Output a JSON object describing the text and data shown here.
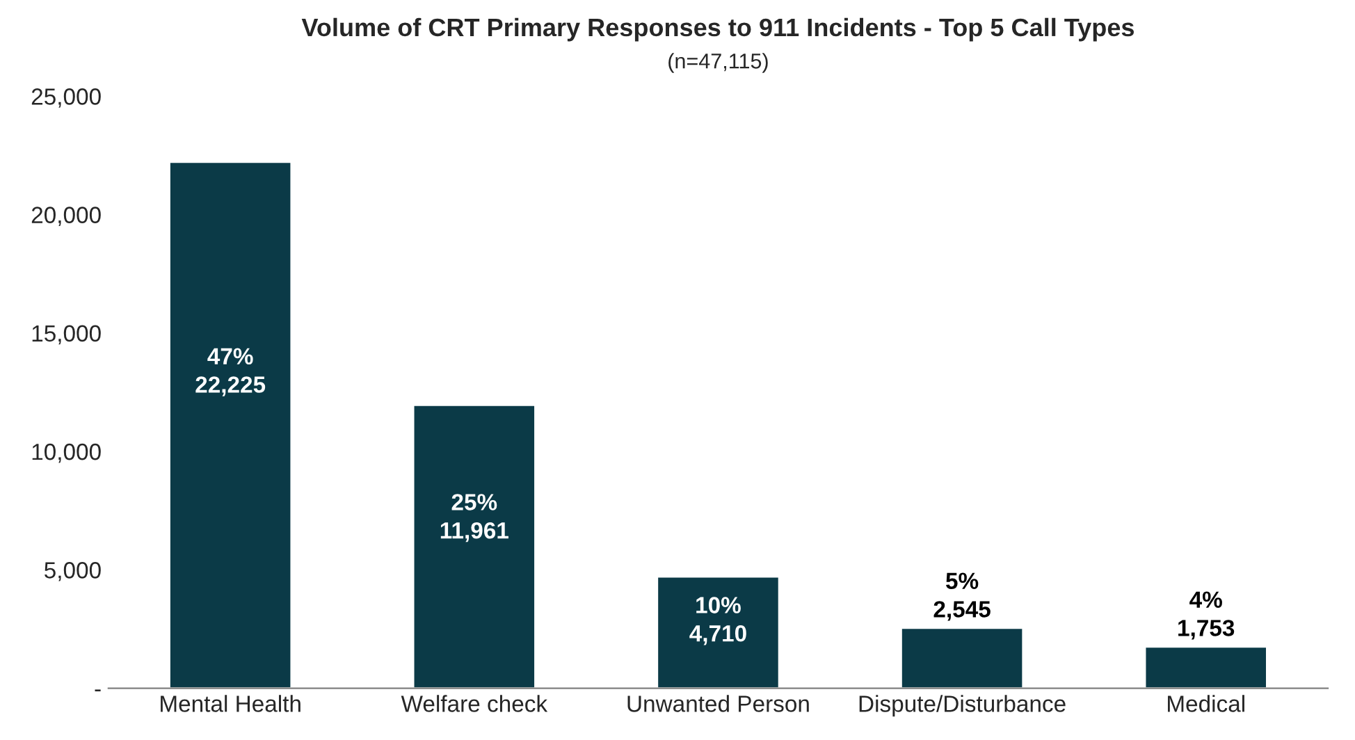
{
  "chart_data": {
    "type": "bar",
    "title": "Volume of CRT Primary Responses to 911 Incidents - Top 5 Call Types",
    "subtitle": "(n=47,115)",
    "categories": [
      "Mental Health",
      "Welfare check",
      "Unwanted Person",
      "Dispute/Disturbance",
      "Medical"
    ],
    "values": [
      22225,
      11961,
      4710,
      2545,
      1753
    ],
    "value_labels": [
      "47%\n22,225",
      "25%\n11,961",
      "10%\n4,710",
      "5%\n2,545",
      "4%\n1,753"
    ],
    "color": "#0b3a47",
    "ylim": [
      0,
      25000
    ],
    "yticks": [
      {
        "value": 0,
        "label": "-"
      },
      {
        "value": 5000,
        "label": "5,000"
      },
      {
        "value": 10000,
        "label": "10,000"
      },
      {
        "value": 15000,
        "label": "15,000"
      },
      {
        "value": 20000,
        "label": "20,000"
      },
      {
        "value": 25000,
        "label": "25,000"
      }
    ],
    "grid": false
  }
}
